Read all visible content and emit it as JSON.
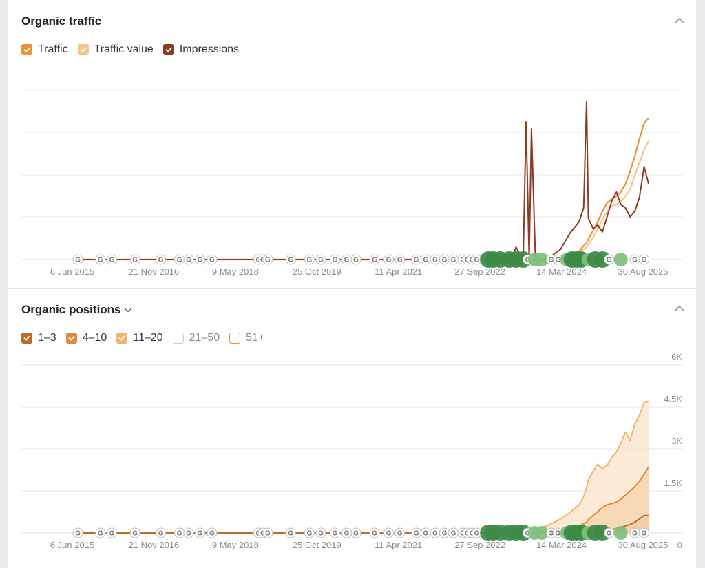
{
  "traffic": {
    "title": "Organic traffic",
    "legend": [
      {
        "label": "Traffic",
        "color": "#e8923a",
        "checked": true
      },
      {
        "label": "Traffic value",
        "color": "#f5c48e",
        "checked": true
      },
      {
        "label": "Impressions",
        "color": "#8f3a22",
        "checked": true
      }
    ]
  },
  "positions": {
    "title": "Organic positions",
    "legend": [
      {
        "label": "1–3",
        "color": "#b86e2a",
        "checked": true
      },
      {
        "label": "4–10",
        "color": "#e08a3c",
        "checked": true
      },
      {
        "label": "11–20",
        "color": "#f0b46e",
        "checked": true
      },
      {
        "label": "21–50",
        "color": "#cfcfcf",
        "checked": false
      },
      {
        "label": "51+",
        "color": "#e8923a",
        "checked": false
      }
    ]
  },
  "colors": {
    "update_major": "#3c8a45",
    "update_minor": "#7fbf7a",
    "update_google": "#ffffff"
  },
  "chart_data": [
    {
      "type": "line",
      "title": "Organic traffic",
      "x_ticks": [
        "6 Jun 2015",
        "21 Nov 2016",
        "9 May 2018",
        "25 Oct 2019",
        "11 Apr 2021",
        "27 Sep 2022",
        "14 Mar 2024",
        "30 Aug 2025"
      ],
      "x": [
        "2015-06-06",
        "2021-07-01",
        "2022-06-01",
        "2022-11-01",
        "2023-01-01",
        "2023-03-01",
        "2023-04-01",
        "2023-04-15",
        "2023-06-01",
        "2023-06-20",
        "2023-07-10",
        "2023-07-25",
        "2023-08-20",
        "2023-10-01",
        "2023-12-01",
        "2024-02-01",
        "2024-04-01",
        "2024-06-01",
        "2024-07-01",
        "2024-07-20",
        "2024-08-01",
        "2024-09-01",
        "2024-10-01",
        "2024-11-01",
        "2024-12-01",
        "2025-01-01",
        "2025-02-01",
        "2025-03-01",
        "2025-04-01",
        "2025-05-01",
        "2025-06-01",
        "2025-07-01",
        "2025-08-01",
        "2025-08-30"
      ],
      "series": [
        {
          "name": "Traffic",
          "values": [
            0,
            0,
            0,
            0,
            0,
            0,
            0,
            0,
            0,
            0,
            0,
            0,
            0,
            0,
            1,
            2,
            5,
            12,
            20,
            24,
            30,
            42,
            55,
            70,
            82,
            88,
            92,
            98,
            110,
            128,
            150,
            175,
            198,
            205
          ]
        },
        {
          "name": "Traffic value",
          "values": [
            0,
            0,
            0,
            0,
            0,
            0,
            0,
            0,
            0,
            0,
            0,
            0,
            0,
            0,
            1,
            2,
            4,
            9,
            15,
            18,
            22,
            32,
            45,
            58,
            70,
            78,
            80,
            84,
            92,
            102,
            122,
            140,
            160,
            172
          ]
        },
        {
          "name": "Impressions",
          "values": [
            0,
            0,
            0,
            0,
            0,
            2,
            10,
            18,
            0,
            200,
            0,
            190,
            0,
            0,
            5,
            15,
            38,
            55,
            75,
            230,
            60,
            45,
            50,
            40,
            62,
            85,
            98,
            80,
            75,
            62,
            70,
            90,
            135,
            110
          ]
        }
      ],
      "grid": true
    },
    {
      "type": "area",
      "title": "Organic positions",
      "x_ticks": [
        "6 Jun 2015",
        "21 Nov 2016",
        "9 May 2018",
        "25 Oct 2019",
        "11 Apr 2021",
        "27 Sep 2022",
        "14 Mar 2024",
        "30 Aug 2025"
      ],
      "y_ticks": [
        "0",
        "1.5K",
        "3K",
        "4.5K",
        "6K"
      ],
      "ylim": [
        0,
        6000
      ],
      "x": [
        "2015-06-06",
        "2021-07-01",
        "2022-06-01",
        "2022-11-01",
        "2023-01-01",
        "2023-03-01",
        "2023-04-01",
        "2023-04-15",
        "2023-06-01",
        "2023-06-20",
        "2023-07-10",
        "2023-07-25",
        "2023-08-20",
        "2023-10-01",
        "2023-12-01",
        "2024-02-01",
        "2024-04-01",
        "2024-06-01",
        "2024-07-01",
        "2024-07-20",
        "2024-08-01",
        "2024-09-01",
        "2024-10-01",
        "2024-11-01",
        "2024-12-01",
        "2025-01-01",
        "2025-02-01",
        "2025-03-01",
        "2025-04-01",
        "2025-05-01",
        "2025-06-01",
        "2025-07-01",
        "2025-08-01",
        "2025-08-30"
      ],
      "series": [
        {
          "name": "1–3",
          "values": [
            0,
            0,
            0,
            0,
            0,
            0,
            0,
            0,
            0,
            0,
            0,
            0,
            0,
            0,
            0,
            0,
            0,
            0,
            0,
            5,
            10,
            20,
            40,
            60,
            90,
            120,
            150,
            200,
            250,
            300,
            380,
            500,
            620,
            620
          ]
        },
        {
          "name": "4–10",
          "values": [
            0,
            0,
            0,
            0,
            0,
            0,
            0,
            0,
            5,
            10,
            10,
            15,
            20,
            30,
            60,
            100,
            180,
            260,
            320,
            380,
            480,
            620,
            760,
            900,
            1000,
            1050,
            1100,
            1200,
            1350,
            1500,
            1650,
            1850,
            2100,
            2350
          ]
        },
        {
          "name": "11–20",
          "values": [
            0,
            0,
            0,
            0,
            0,
            0,
            10,
            40,
            80,
            100,
            110,
            120,
            160,
            200,
            320,
            500,
            720,
            1000,
            1300,
            1600,
            1900,
            2200,
            2450,
            2300,
            2400,
            2700,
            2900,
            3200,
            3600,
            3300,
            3900,
            4200,
            4650,
            4700
          ]
        }
      ],
      "grid": true
    }
  ],
  "updates": [
    {
      "date": "2015-06-06",
      "kind": "google"
    },
    {
      "date": "2015-11-01",
      "kind": "google"
    },
    {
      "date": "2016-01-15",
      "kind": "google"
    },
    {
      "date": "2016-06-15",
      "kind": "google"
    },
    {
      "date": "2016-12-01",
      "kind": "google"
    },
    {
      "date": "2017-04-01",
      "kind": "google"
    },
    {
      "date": "2017-06-01",
      "kind": "google"
    },
    {
      "date": "2017-08-15",
      "kind": "google"
    },
    {
      "date": "2017-11-01",
      "kind": "google"
    },
    {
      "date": "2018-09-01",
      "kind": "google"
    },
    {
      "date": "2018-10-01",
      "kind": "google"
    },
    {
      "date": "2018-11-01",
      "kind": "google"
    },
    {
      "date": "2019-04-01",
      "kind": "google"
    },
    {
      "date": "2019-08-01",
      "kind": "google"
    },
    {
      "date": "2019-10-15",
      "kind": "google"
    },
    {
      "date": "2020-01-15",
      "kind": "google"
    },
    {
      "date": "2020-04-01",
      "kind": "google"
    },
    {
      "date": "2020-06-01",
      "kind": "google"
    },
    {
      "date": "2020-10-01",
      "kind": "google"
    },
    {
      "date": "2021-01-01",
      "kind": "google"
    },
    {
      "date": "2021-03-15",
      "kind": "google"
    },
    {
      "date": "2021-07-01",
      "kind": "google"
    },
    {
      "date": "2021-09-01",
      "kind": "google"
    },
    {
      "date": "2021-11-01",
      "kind": "google"
    },
    {
      "date": "2022-01-01",
      "kind": "google"
    },
    {
      "date": "2022-03-01",
      "kind": "google"
    },
    {
      "date": "2022-05-01",
      "kind": "google"
    },
    {
      "date": "2022-06-01",
      "kind": "google"
    },
    {
      "date": "2022-07-01",
      "kind": "google"
    },
    {
      "date": "2022-08-01",
      "kind": "google"
    },
    {
      "date": "2022-10-15",
      "kind": "major"
    },
    {
      "date": "2022-11-15",
      "kind": "major"
    },
    {
      "date": "2023-01-01",
      "kind": "major"
    },
    {
      "date": "2023-03-01",
      "kind": "major"
    },
    {
      "date": "2023-04-15",
      "kind": "major"
    },
    {
      "date": "2023-06-01",
      "kind": "major"
    },
    {
      "date": "2023-07-01",
      "kind": "google"
    },
    {
      "date": "2023-08-15",
      "kind": "minor"
    },
    {
      "date": "2023-10-01",
      "kind": "minor"
    },
    {
      "date": "2023-12-01",
      "kind": "google"
    },
    {
      "date": "2024-01-15",
      "kind": "google"
    },
    {
      "date": "2024-03-15",
      "kind": "minor"
    },
    {
      "date": "2024-04-15",
      "kind": "major"
    },
    {
      "date": "2024-05-15",
      "kind": "major"
    },
    {
      "date": "2024-06-15",
      "kind": "major"
    },
    {
      "date": "2024-08-01",
      "kind": "minor"
    },
    {
      "date": "2024-09-15",
      "kind": "major"
    },
    {
      "date": "2024-11-01",
      "kind": "major"
    },
    {
      "date": "2024-12-15",
      "kind": "google"
    },
    {
      "date": "2025-03-01",
      "kind": "minor"
    },
    {
      "date": "2025-06-01",
      "kind": "google"
    },
    {
      "date": "2025-08-01",
      "kind": "google"
    }
  ]
}
